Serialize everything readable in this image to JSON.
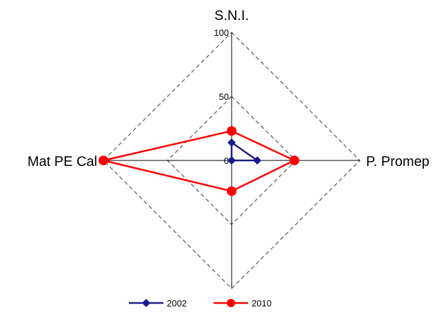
{
  "chart_data": {
    "type": "radar",
    "axes": [
      "S.N.I.",
      "P. Promep",
      "",
      "Mat PE Cal"
    ],
    "r_range": [
      0,
      100
    ],
    "ticks": [
      0,
      50,
      100
    ],
    "tick_labels": [
      "0",
      "50",
      "100"
    ],
    "grid": true,
    "legend_position": "bottom",
    "series": [
      {
        "name": "2002",
        "values": [
          14,
          20,
          0,
          0
        ],
        "color": "#1a1a8c",
        "marker": "diamond"
      },
      {
        "name": "2010",
        "values": [
          23,
          49,
          24,
          100
        ],
        "color": "#ff0000",
        "marker": "circle"
      }
    ]
  }
}
